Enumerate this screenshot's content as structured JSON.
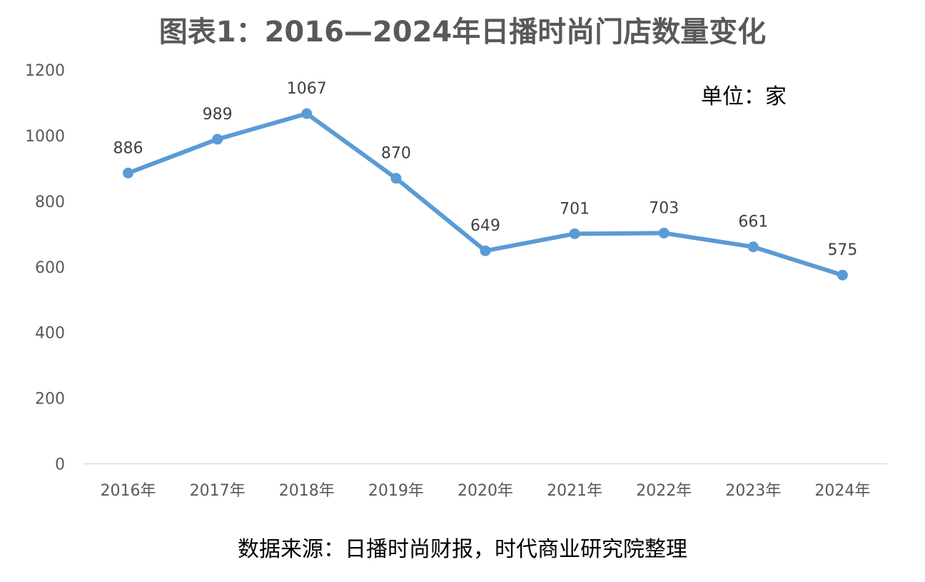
{
  "chart_data": {
    "type": "line",
    "title": "图表1：2016—2024年日播时尚门店数量变化",
    "unit_note": "单位：家",
    "source_note": "数据来源：日播时尚财报，时代商业研究院整理",
    "categories": [
      "2016年",
      "2017年",
      "2018年",
      "2019年",
      "2020年",
      "2021年",
      "2022年",
      "2023年",
      "2024年"
    ],
    "series": [
      {
        "values": [
          886,
          989,
          1067,
          870,
          649,
          701,
          703,
          661,
          575
        ],
        "color": "#5b9bd5"
      }
    ],
    "y_ticks": [
      "0",
      "200",
      "400",
      "600",
      "800",
      "1000",
      "1200"
    ],
    "ylim": [
      0,
      1200
    ],
    "grid": false,
    "data_labels": true
  }
}
